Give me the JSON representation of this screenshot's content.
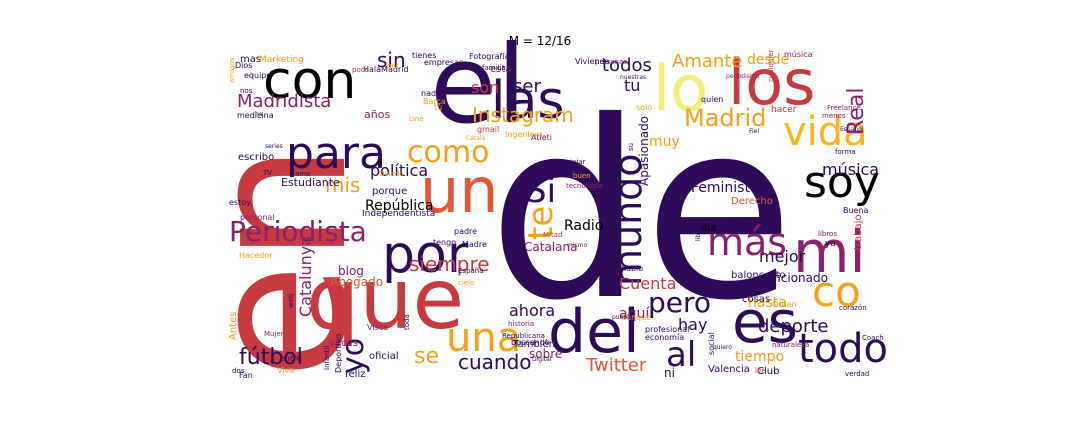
{
  "chart_data": {
    "type": "wordcloud",
    "title": "M = 12/16",
    "words": [
      {
        "text": "de",
        "color": "#2d0b59"
      },
      {
        "text": "en",
        "color": "#c73a3f"
      },
      {
        "text": "el",
        "color": "#2d0b59"
      },
      {
        "text": "que",
        "color": "#c73a3f"
      },
      {
        "text": "los",
        "color": "#c73a3f"
      },
      {
        "text": "con",
        "color": "#000004"
      },
      {
        "text": "lo",
        "color": "#f1ef75"
      },
      {
        "text": "las",
        "color": "#2d0b59"
      },
      {
        "text": "un",
        "color": "#e25734"
      },
      {
        "text": "para",
        "color": "#2d0b59"
      },
      {
        "text": "por",
        "color": "#2d0b59"
      },
      {
        "text": "del",
        "color": "#2d0b59"
      },
      {
        "text": "es",
        "color": "#2d0b59"
      },
      {
        "text": "mi",
        "color": "#8a226a"
      },
      {
        "text": "vida",
        "color": "#fbb61a"
      },
      {
        "text": "una",
        "color": "#f8a01a"
      },
      {
        "text": "soy",
        "color": "#000004"
      },
      {
        "text": "al",
        "color": "#2d0b59"
      },
      {
        "text": "co",
        "color": "#f8a01a"
      },
      {
        "text": "todo",
        "color": "#2d0b59"
      },
      {
        "text": "más",
        "color": "#8a226a"
      },
      {
        "text": "mundo",
        "color": "#2d0b59"
      },
      {
        "text": "como",
        "color": "#f8a01a"
      },
      {
        "text": "Madrid",
        "color": "#f8a01a"
      },
      {
        "text": "pero",
        "color": "#2d0b59"
      },
      {
        "text": "Si",
        "color": "#2d0b59"
      },
      {
        "text": "te",
        "color": "#f8a01a"
      },
      {
        "text": "Periodista",
        "color": "#8a226a"
      },
      {
        "text": "yo",
        "color": "#2d0b59"
      },
      {
        "text": "cuando",
        "color": "#2d0b59"
      },
      {
        "text": "fútbol",
        "color": "#2d0b59"
      },
      {
        "text": "Instagram",
        "color": "#f8a01a"
      },
      {
        "text": "Madridista",
        "color": "#8a226a"
      },
      {
        "text": "Real",
        "color": "#8a226a"
      },
      {
        "text": "siempre",
        "color": "#c73a3f"
      },
      {
        "text": "Amante",
        "color": "#f8a01a"
      },
      {
        "text": "se",
        "color": "#f8a01a"
      },
      {
        "text": "mis",
        "color": "#f8a01a"
      },
      {
        "text": "sin",
        "color": "#2d0b59"
      },
      {
        "text": "ser",
        "color": "#2d0b59"
      },
      {
        "text": "Twitter",
        "color": "#e25734"
      },
      {
        "text": "deporte",
        "color": "#2d0b59"
      },
      {
        "text": "música",
        "color": "#2d0b59"
      },
      {
        "text": "hay",
        "color": "#2d0b59"
      },
      {
        "text": "política",
        "color": "#2d0b59"
      },
      {
        "text": "todos",
        "color": "#2d0b59"
      },
      {
        "text": "son",
        "color": "#c73a3f"
      },
      {
        "text": "tu",
        "color": "#2d0b59"
      },
      {
        "text": "Catalunya",
        "color": "#8a226a"
      },
      {
        "text": "Cuenta",
        "color": "#c73a3f"
      },
      {
        "text": "gusta",
        "color": "#2d0b59"
      },
      {
        "text": "mejor",
        "color": "#2d0b59"
      },
      {
        "text": "ahora",
        "color": "#2d0b59"
      },
      {
        "text": "hasta",
        "color": "#f8a01a"
      },
      {
        "text": "tiempo",
        "color": "#f8a01a"
      },
      {
        "text": "aquí",
        "color": "#8a226a"
      },
      {
        "text": "desde",
        "color": "#f8a01a"
      },
      {
        "text": "Feminista",
        "color": "#2d0b59"
      },
      {
        "text": "República",
        "color": "#000004"
      },
      {
        "text": "Radio",
        "color": "#000004"
      },
      {
        "text": "muy",
        "color": "#f8a01a"
      },
      {
        "text": "años",
        "color": "#8a226a"
      },
      {
        "text": "Apasionado",
        "color": "#2d0b59"
      },
      {
        "text": "sobre",
        "color": "#8a226a"
      },
      {
        "text": "Aficionado",
        "color": "#2d0b59"
      },
      {
        "text": "trabajo",
        "color": "#c73a3f"
      },
      {
        "text": "Catalana",
        "color": "#8a226a"
      },
      {
        "text": "Abogado",
        "color": "#e25734"
      },
      {
        "text": "blog",
        "color": "#8a226a"
      },
      {
        "text": "Estudiante",
        "color": "#2d0b59"
      },
      {
        "text": "escribo",
        "color": "#2d0b59"
      },
      {
        "text": "porque",
        "color": "#2d0b59"
      },
      {
        "text": "esta",
        "color": "#8a226a"
      },
      {
        "text": "Derecho",
        "color": "#e25734"
      },
      {
        "text": "baloncesto",
        "color": "#2d0b59"
      },
      {
        "text": "cosas",
        "color": "#2d0b59"
      },
      {
        "text": "veces",
        "color": "#8a226a"
      },
      {
        "text": "También",
        "color": "#2d0b59"
      },
      {
        "text": "día",
        "color": "#000004"
      },
      {
        "text": "Club",
        "color": "#2d0b59"
      },
      {
        "text": "ni",
        "color": "#2d0b59"
      },
      {
        "text": "Valencia",
        "color": "#2d0b59"
      },
      {
        "text": "oficial",
        "color": "#2d0b59"
      },
      {
        "text": "feliz",
        "color": "#2d0b59"
      },
      {
        "text": "Antes",
        "color": "#f8a01a"
      },
      {
        "text": "Independentista",
        "color": "#2d0b59"
      },
      {
        "text": "mas",
        "color": "#2d0b59"
      },
      {
        "text": "Marketing",
        "color": "#f8a01a"
      },
      {
        "text": "nada",
        "color": "#2d0b59"
      },
      {
        "text": "Barça",
        "color": "#f8a01a"
      },
      {
        "text": "Atleti",
        "color": "#8a226a"
      },
      {
        "text": "buscando",
        "color": "#2d0b59"
      },
      {
        "text": "Ingeniero",
        "color": "#f8a01a"
      },
      {
        "text": "padre",
        "color": "#2d0b59"
      },
      {
        "text": "Madre",
        "color": "#2d0b59"
      },
      {
        "text": "hacer",
        "color": "#c73a3f"
      },
      {
        "text": "solo",
        "color": "#f8a01a"
      },
      {
        "text": "quien",
        "color": "#2d0b59"
      },
      {
        "text": "hablo",
        "color": "#2d0b59"
      },
      {
        "text": "aunque",
        "color": "#f8a01a"
      },
      {
        "text": "profesional",
        "color": "#2d0b59"
      },
      {
        "text": "social",
        "color": "#2d0b59"
      },
      {
        "text": "economía",
        "color": "#2d0b59"
      },
      {
        "text": "España",
        "color": "#2d0b59"
      },
      {
        "text": "Republicana",
        "color": "#2d0b59"
      },
      {
        "text": "historia",
        "color": "#8a226a"
      },
      {
        "text": "Deportivo",
        "color": "#2d0b59"
      },
      {
        "text": "Infantil",
        "color": "#2d0b59"
      },
      {
        "text": "Fan",
        "color": "#2d0b59"
      },
      {
        "text": "Mujer",
        "color": "#8a226a"
      },
      {
        "text": "Visca",
        "color": "#8a226a"
      },
      {
        "text": "Hacedor",
        "color": "#f8a01a"
      },
      {
        "text": "entre",
        "color": "#2d0b59"
      },
      {
        "text": "dos",
        "color": "#2d0b59"
      },
      {
        "text": "Viva",
        "color": "#f8a01a"
      },
      {
        "text": "HalaMadrid",
        "color": "#2d0b59"
      },
      {
        "text": "tienes",
        "color": "#2d0b59"
      },
      {
        "text": "Fotografía",
        "color": "#2d0b59"
      },
      {
        "text": "familia",
        "color": "#2d0b59"
      },
      {
        "text": "personas",
        "color": "#8a226a"
      },
      {
        "text": "empresas",
        "color": "#2d0b59"
      },
      {
        "text": "medicina",
        "color": "#2d0b59"
      },
      {
        "text": "nos",
        "color": "#2d0b59"
      },
      {
        "text": "Dios",
        "color": "#2d0b59"
      },
      {
        "text": "amigos",
        "color": "#f8a01a"
      },
      {
        "text": "equipo",
        "color": "#2d0b59"
      },
      {
        "text": "poco",
        "color": "#c73a3f"
      },
      {
        "text": "tú",
        "color": "#f8a01a"
      },
      {
        "text": "tengo",
        "color": "#2d0b59"
      },
      {
        "text": "gmail",
        "color": "#c73a3f"
      },
      {
        "text": "per",
        "color": "#f8a01a"
      },
      {
        "text": "cine",
        "color": "#f8a01a"
      },
      {
        "text": "Viviendo",
        "color": "#2d0b59"
      },
      {
        "text": "nuestras",
        "color": "#2d0b59"
      },
      {
        "text": "su",
        "color": "#2d0b59"
      },
      {
        "text": "cualquier",
        "color": "#c73a3f"
      },
      {
        "text": "periodismo",
        "color": "#8a226a"
      },
      {
        "text": "Freelance",
        "color": "#8a226a"
      },
      {
        "text": "menos",
        "color": "#8a226a"
      },
      {
        "text": "forma",
        "color": "#2d0b59"
      },
      {
        "text": "Fiel",
        "color": "#2d0b59"
      },
      {
        "text": "Español",
        "color": "#2d0b59"
      },
      {
        "text": "tecnología",
        "color": "#8a226a"
      },
      {
        "text": "buen",
        "color": "#f8a01a"
      },
      {
        "text": "Buena",
        "color": "#2d0b59"
      },
      {
        "text": "ya",
        "color": "#2d0b59"
      },
      {
        "text": "libros",
        "color": "#8a226a"
      },
      {
        "text": "eso",
        "color": "#2d0b59"
      },
      {
        "text": "libre",
        "color": "#2d0b59"
      },
      {
        "text": "Mitad",
        "color": "#c73a3f"
      },
      {
        "text": "mismo",
        "color": "#8a226a"
      },
      {
        "text": "corazón",
        "color": "#2d0b59"
      },
      {
        "text": "Orden",
        "color": "#f8a01a"
      },
      {
        "text": "naturaleza",
        "color": "#8a226a"
      },
      {
        "text": "Coach",
        "color": "#2d0b59"
      },
      {
        "text": "verdad",
        "color": "#2d0b59"
      },
      {
        "text": "life",
        "color": "#c73a3f"
      },
      {
        "text": "pueblo",
        "color": "#2d0b59"
      },
      {
        "text": "Digital",
        "color": "#2d0b59"
      },
      {
        "text": "toda",
        "color": "#2d0b59"
      },
      {
        "text": "cielo",
        "color": "#f8a01a"
      },
      {
        "text": "personal",
        "color": "#8a226a"
      },
      {
        "text": "TV",
        "color": "#2d0b59"
      },
      {
        "text": "amo",
        "color": "#2d0b59"
      },
      {
        "text": "series",
        "color": "#2d0b59"
      },
      {
        "text": "estoy",
        "color": "#2d0b59"
      },
      {
        "text": "web",
        "color": "#2d0b59"
      },
      {
        "text": "ha",
        "color": "#2d0b59"
      },
      {
        "text": "música",
        "color": "#8a226a"
      },
      {
        "text": "Oviedo",
        "color": "#f8a01a"
      },
      {
        "text": "viajar",
        "color": "#2d0b59"
      },
      {
        "text": "quiero",
        "color": "#2d0b59"
      },
      {
        "text": "Català",
        "color": "#f8a01a"
      },
      {
        "text": "nosotros",
        "color": "#2d0b59"
      },
      {
        "text": "endorsement",
        "color": "#2d0b59"
      },
      {
        "text": "gracias",
        "color": "#8a226a"
      }
    ]
  }
}
